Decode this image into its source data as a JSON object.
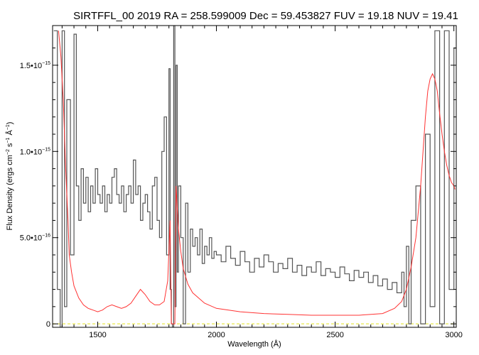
{
  "chart_data": {
    "type": "line",
    "title": "SIRTFFL_00 2019 RA = 258.599009 Dec =  59.453827 FUV = 19.18 NUV = 19.41",
    "xlabel": "Wavelength (Å)",
    "ylabel": {
      "text_main": "Flux Density (ergs cm",
      "sup1": "−2",
      "text_mid": " s",
      "sup2": "−1",
      "text_end": " Å",
      "sup3": "−1",
      "text_close": ")"
    },
    "xlim": [
      1310,
      3010
    ],
    "ylim": [
      -2e-17,
      1.73e-15
    ],
    "x_ticks": [
      {
        "value": 1500,
        "label": "1500"
      },
      {
        "value": 2000,
        "label": "2000"
      },
      {
        "value": 2500,
        "label": "2500"
      },
      {
        "value": 3000,
        "label": "3000"
      }
    ],
    "y_ticks": [
      {
        "value": 0,
        "label": "0",
        "exp": ""
      },
      {
        "value": 5e-16,
        "label": "5.0•10",
        "exp": "−16"
      },
      {
        "value": 1e-15,
        "label": "1.0•10",
        "exp": "−15"
      },
      {
        "value": 1.5e-15,
        "label": "1.5•10",
        "exp": "−15"
      }
    ],
    "series": [
      {
        "color": "#555555",
        "style": "histogram",
        "x": [
          1315,
          1330,
          1342,
          1350,
          1360,
          1370,
          1385,
          1400,
          1410,
          1420,
          1430,
          1440,
          1450,
          1460,
          1470,
          1480,
          1490,
          1500,
          1510,
          1520,
          1530,
          1540,
          1550,
          1560,
          1570,
          1580,
          1590,
          1600,
          1610,
          1620,
          1630,
          1640,
          1650,
          1660,
          1670,
          1680,
          1690,
          1700,
          1710,
          1720,
          1730,
          1740,
          1750,
          1760,
          1770,
          1780,
          1790,
          1800,
          1805,
          1810,
          1815,
          1820,
          1825,
          1830,
          1835,
          1840,
          1850,
          1860,
          1870,
          1880,
          1890,
          1900,
          1910,
          1920,
          1930,
          1940,
          1950,
          1960,
          1970,
          1980,
          1990,
          2000,
          2020,
          2040,
          2060,
          2080,
          2100,
          2120,
          2140,
          2160,
          2180,
          2200,
          2220,
          2240,
          2260,
          2280,
          2300,
          2320,
          2340,
          2360,
          2380,
          2400,
          2420,
          2440,
          2460,
          2480,
          2500,
          2520,
          2540,
          2560,
          2580,
          2600,
          2620,
          2640,
          2660,
          2680,
          2700,
          2720,
          2740,
          2760,
          2780,
          2790,
          2800,
          2810,
          2820,
          2840,
          2860,
          2880,
          2900,
          2920,
          2940,
          2960,
          2980,
          3000
        ],
        "values": [
          1.7e-15,
          2e-16,
          -1e-16,
          1.7e-15,
          1e-16,
          1.3e-15,
          4e-16,
          1.68e-15,
          8e-16,
          6e-16,
          9e-16,
          7e-16,
          8.5e-16,
          6.5e-16,
          8e-16,
          7e-16,
          9e-16,
          7.5e-16,
          7e-16,
          8e-16,
          6.5e-16,
          7.5e-16,
          7e-16,
          8.5e-16,
          9e-16,
          7.5e-16,
          7e-16,
          8e-16,
          6.5e-16,
          7.5e-16,
          8e-16,
          7e-16,
          9.5e-16,
          7.5e-16,
          8e-16,
          6e-16,
          7e-16,
          7.5e-16,
          6.5e-16,
          5.5e-16,
          8e-16,
          8.5e-16,
          6e-16,
          5e-16,
          1e-15,
          1.2e-15,
          4e-16,
          1.48e-15,
          2e-16,
          0.0,
          -5e-17,
          1.9e-15,
          1e-16,
          1.5e-15,
          3e-16,
          8e-16,
          5e-16,
          0.0,
          7e-16,
          3e-16,
          5.5e-16,
          4.5e-16,
          5e-16,
          4e-16,
          5.5e-16,
          3.5e-16,
          4.5e-16,
          4e-16,
          5e-16,
          3.8e-16,
          4.2e-16,
          4e-16,
          3.6e-16,
          4.5e-16,
          3.8e-16,
          3.4e-16,
          4.2e-16,
          3.6e-16,
          3e-16,
          3.8e-16,
          3.3e-16,
          4e-16,
          3.6e-16,
          3e-16,
          3.5e-16,
          3.2e-16,
          3.8e-16,
          3e-16,
          3.4e-16,
          2.8e-16,
          3.3e-16,
          3e-16,
          3.6e-16,
          2.8e-16,
          3.2e-16,
          3e-16,
          2.7e-16,
          3.3e-16,
          2.9e-16,
          2.5e-16,
          3.1e-16,
          2.7e-16,
          3e-16,
          2.4e-16,
          2.8e-16,
          2.2e-16,
          2.6e-16,
          2e-16,
          2.4e-16,
          1.8e-16,
          3e-16,
          1e-16,
          4.5e-16,
          0.0,
          6e-16,
          8e-16,
          0.0,
          1.1e-15,
          1e-16,
          1.7e-15,
          0.0,
          1.7e-15,
          2e-16,
          1.6e-15
        ]
      },
      {
        "color": "#ff3333",
        "style": "line",
        "x": [
          1335,
          1345,
          1355,
          1365,
          1375,
          1380,
          1390,
          1400,
          1420,
          1440,
          1460,
          1480,
          1500,
          1520,
          1540,
          1560,
          1580,
          1600,
          1620,
          1640,
          1660,
          1680,
          1700,
          1720,
          1740,
          1760,
          1780,
          1795,
          1805,
          1810,
          1815,
          1820,
          1825,
          1830,
          1840,
          1850,
          1860,
          1880,
          1900,
          1950,
          2000,
          2100,
          2200,
          2300,
          2400,
          2500,
          2600,
          2700,
          2750,
          2780,
          2800,
          2820,
          2840,
          2860,
          2880,
          2890,
          2900,
          2910,
          2920,
          2930,
          2940,
          2950,
          2960,
          2970,
          2980,
          2990,
          3000,
          3005
        ],
        "values": [
          1.7e-15,
          1.55e-15,
          1.3e-15,
          9e-16,
          6e-16,
          4e-16,
          3e-16,
          2.2e-16,
          1.5e-16,
          1.1e-16,
          9e-17,
          8e-17,
          7e-17,
          8e-17,
          1e-16,
          1.1e-16,
          1e-16,
          9e-17,
          1e-16,
          1.2e-16,
          1.6e-16,
          2e-16,
          1.7e-16,
          1.3e-16,
          1.1e-16,
          1.1e-16,
          1.3e-16,
          2.5e-16,
          6e-16,
          0.0,
          0.0,
          0.0,
          0.0,
          8e-16,
          5.5e-16,
          4.2e-16,
          3.2e-16,
          2.3e-16,
          1.8e-16,
          1.2e-16,
          9e-17,
          7e-17,
          6e-17,
          5.5e-17,
          5e-17,
          5e-17,
          5e-17,
          6e-17,
          9e-17,
          1.3e-16,
          2e-16,
          3.3e-16,
          5e-16,
          8e-16,
          1.2e-15,
          1.35e-15,
          1.42e-15,
          1.45e-15,
          1.42e-15,
          1.35e-15,
          1.22e-15,
          1.1e-15,
          1e-15,
          9.2e-16,
          8.6e-16,
          8.2e-16,
          8e-16,
          7.8e-16
        ]
      }
    ],
    "zero_line": {
      "value": 0,
      "color": "#e8e84a",
      "style": "dashed"
    },
    "grid": false,
    "legend": "none"
  }
}
